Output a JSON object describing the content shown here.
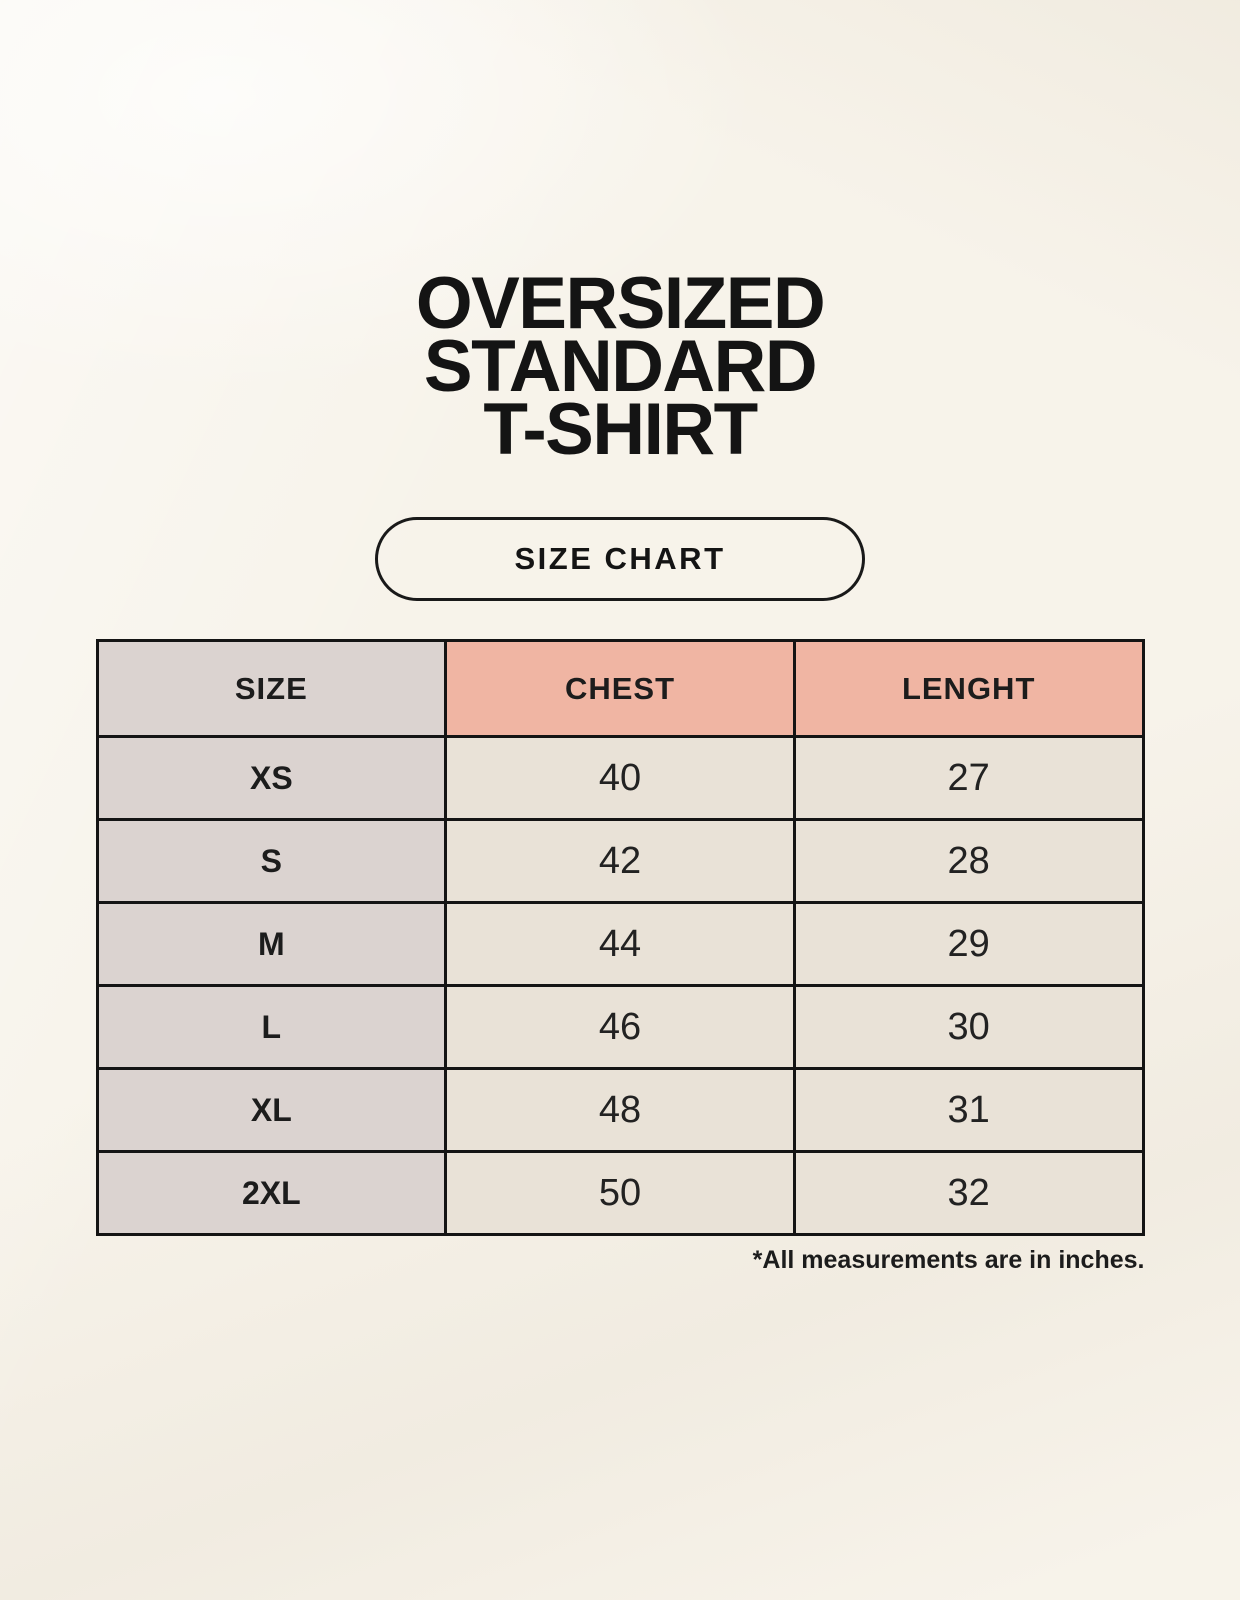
{
  "title": {
    "line1": "OVERSIZED",
    "line2": "STANDARD",
    "line3": "T-SHIRT"
  },
  "size_chart_button": {
    "label": "SIZE CHART"
  },
  "table": {
    "headers": [
      "SIZE",
      "CHEST",
      "LENGHT"
    ],
    "rows": [
      {
        "size": "XS",
        "chest": "40",
        "length": "27"
      },
      {
        "size": "S",
        "chest": "42",
        "length": "28"
      },
      {
        "size": "M",
        "chest": "44",
        "length": "29"
      },
      {
        "size": "L",
        "chest": "46",
        "length": "30"
      },
      {
        "size": "XL",
        "chest": "48",
        "length": "31"
      },
      {
        "size": "2XL",
        "chest": "50",
        "length": "32"
      }
    ]
  },
  "footnote": "*All measurements are in inches.",
  "colors": {
    "page_background": "#f7f3ea",
    "header_accent_pink": "#f0b5a3",
    "size_column_gray": "#dbd3d0",
    "data_cell_cream": "#e9e2d7",
    "border_black": "#141414",
    "text": "#1c1c1c"
  },
  "chart_data": {
    "type": "table",
    "title": "OVERSIZED STANDARD T-SHIRT — SIZE CHART",
    "columns": [
      "SIZE",
      "CHEST",
      "LENGHT"
    ],
    "rows": [
      [
        "XS",
        40,
        27
      ],
      [
        "S",
        42,
        28
      ],
      [
        "M",
        44,
        29
      ],
      [
        "L",
        46,
        30
      ],
      [
        "XL",
        48,
        31
      ],
      [
        "2XL",
        50,
        32
      ]
    ],
    "units": "inches",
    "note": "*All measurements are in inches."
  }
}
